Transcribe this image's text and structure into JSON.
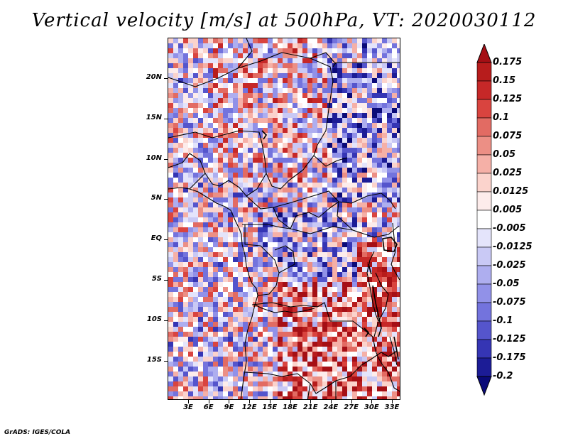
{
  "title": "Vertical velocity [m/s] at 500hPa, VT: 2020030112",
  "map": {
    "region": "Central/West Africa",
    "lat_ticks": [
      "20N",
      "15N",
      "10N",
      "5N",
      "EQ",
      "5S",
      "10S",
      "15S"
    ],
    "lon_ticks": [
      "3E",
      "6E",
      "9E",
      "12E",
      "15E",
      "18E",
      "21E",
      "24E",
      "27E",
      "30E",
      "33E"
    ]
  },
  "colorbar": {
    "labels": [
      "0.175",
      "0.15",
      "0.125",
      "0.1",
      "0.075",
      "0.05",
      "0.025",
      "0.0125",
      "0.005",
      "-0.005",
      "-0.0125",
      "-0.025",
      "-0.05",
      "-0.075",
      "-0.1",
      "-0.125",
      "-0.175",
      "-0.2"
    ],
    "colors": [
      "#a50f15",
      "#b71c1c",
      "#c62828",
      "#d9443f",
      "#e26b63",
      "#ec8f85",
      "#f5b0a7",
      "#fbd3cc",
      "#fdeceb",
      "#ffffff",
      "#e4e4fb",
      "#c9c9f5",
      "#aeaeef",
      "#9191e8",
      "#7373dd",
      "#5555cc",
      "#3535b4",
      "#1c1c96",
      "#0a0a78"
    ]
  },
  "credit": "GrADS: IGES/COLA"
}
